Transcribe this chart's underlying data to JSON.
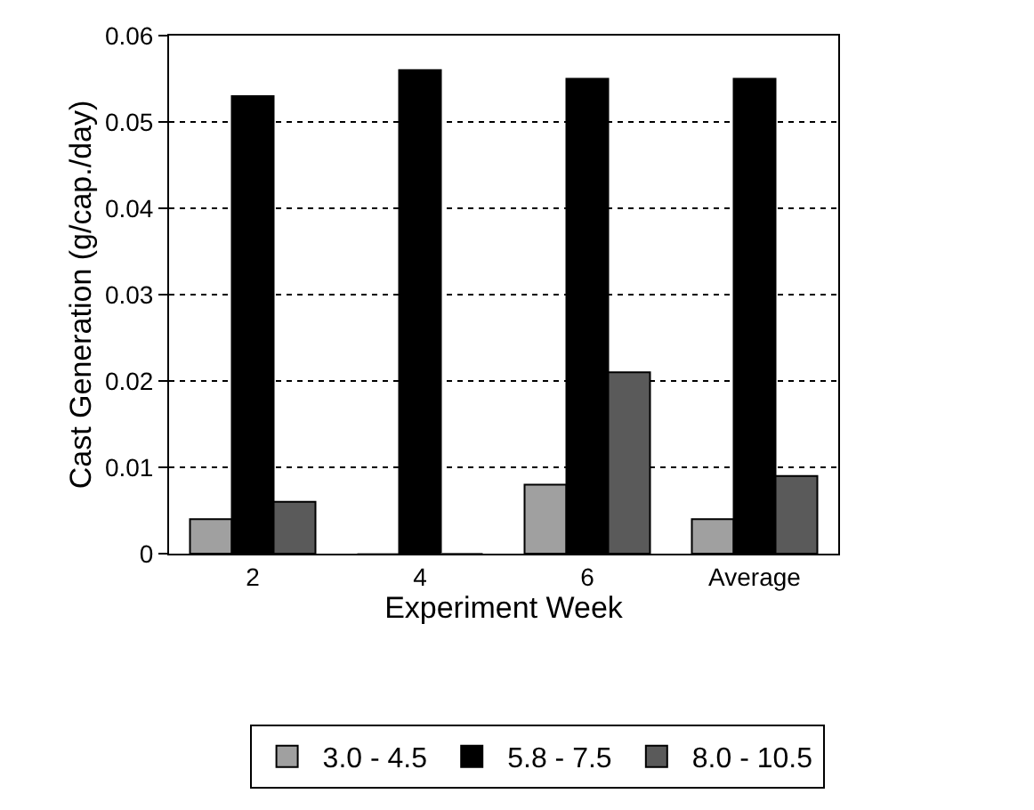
{
  "chart_data": {
    "type": "bar",
    "xlabel": "Experiment Week",
    "ylabel": "Cast Generation (g/cap./day)",
    "categories": [
      "2",
      "4",
      "6",
      "Average"
    ],
    "series": [
      {
        "name": "3.0 - 4.5",
        "color": "#a0a0a0",
        "values": [
          0.004,
          0,
          0.008,
          0.004
        ]
      },
      {
        "name": "5.8 - 7.5",
        "color": "#000000",
        "values": [
          0.053,
          0.056,
          0.055,
          0.055
        ]
      },
      {
        "name": "8.0 - 10.5",
        "color": "#5a5a5a",
        "values": [
          0.006,
          0,
          0.021,
          0.009
        ]
      }
    ],
    "ylim": [
      0,
      0.06
    ],
    "yticks": [
      0,
      0.01,
      0.02,
      0.03,
      0.04,
      0.05,
      0.06
    ],
    "grid": "y",
    "legend": "bottom"
  }
}
